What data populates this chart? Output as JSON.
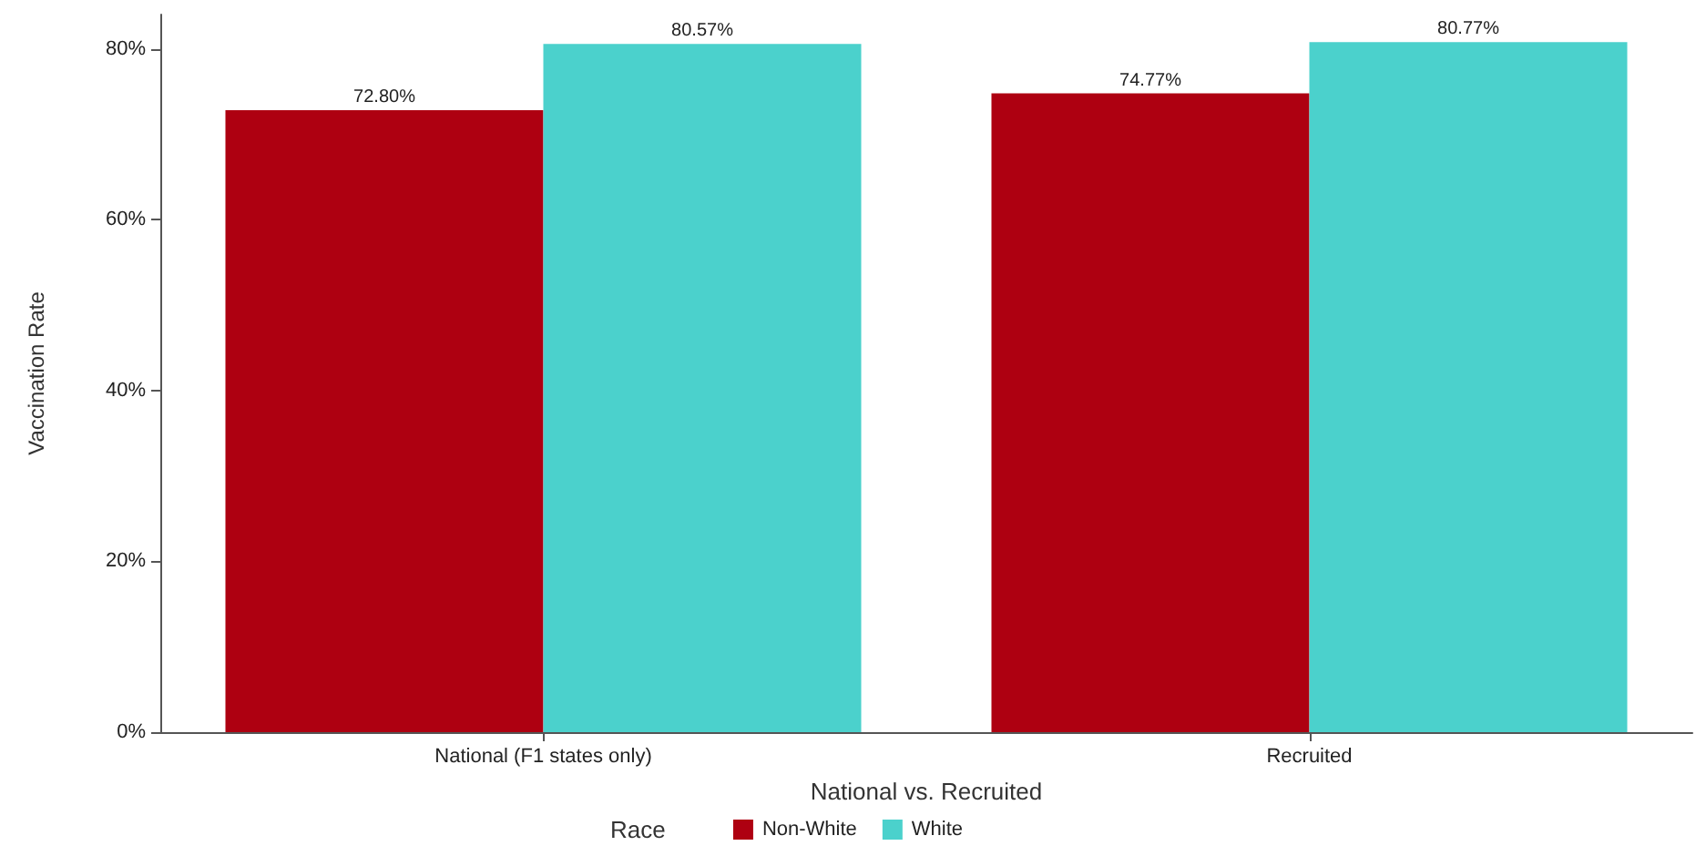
{
  "chart_data": {
    "type": "bar",
    "xlabel": "National vs. Recruited",
    "ylabel": "Vaccination Rate",
    "legend_title": "Race",
    "categories": [
      "National (F1 states only)",
      "Recruited"
    ],
    "series": [
      {
        "name": "Non-White",
        "color": "#ae0011",
        "values": [
          72.8,
          74.77
        ],
        "value_labels": [
          "72.80%",
          "74.77%"
        ]
      },
      {
        "name": "White",
        "color": "#4bd1cc",
        "values": [
          80.57,
          80.77
        ],
        "value_labels": [
          "80.57%",
          "80.77%"
        ]
      }
    ],
    "ylim": [
      0,
      84
    ],
    "yticks": [
      {
        "value": 0,
        "label": "0%"
      },
      {
        "value": 20,
        "label": "20%"
      },
      {
        "value": 40,
        "label": "40%"
      },
      {
        "value": 60,
        "label": "60%"
      },
      {
        "value": 80,
        "label": "80%"
      }
    ],
    "grid": false,
    "legend": "bottom"
  }
}
